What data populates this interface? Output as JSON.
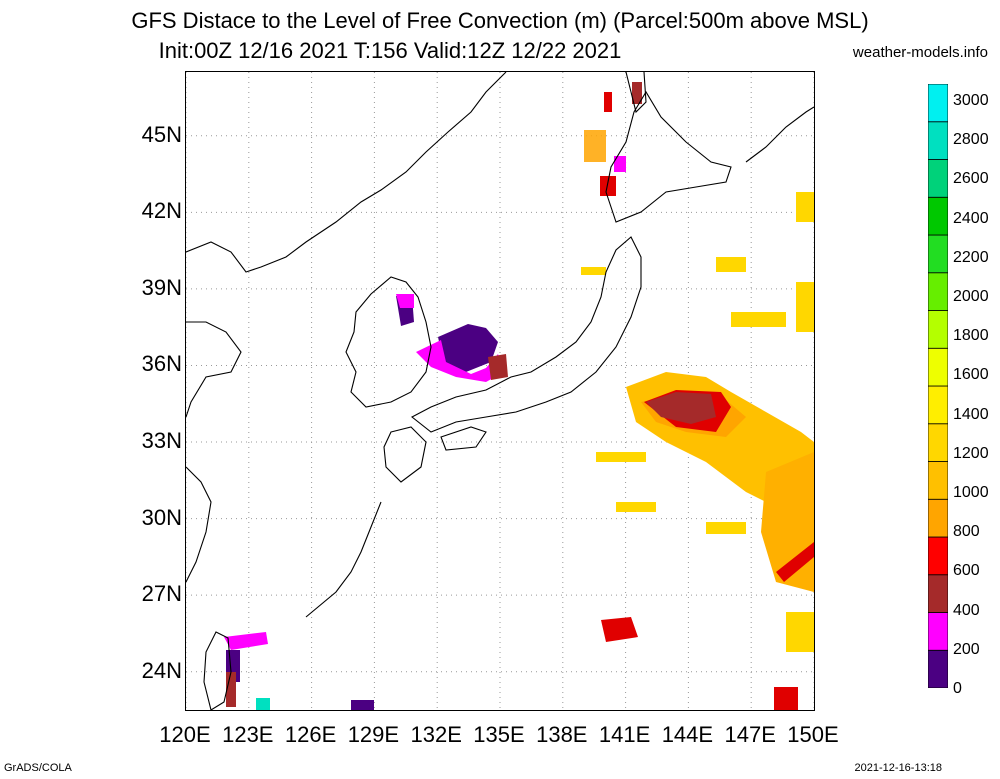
{
  "title_line1": "GFS Distace to the Level of Free Convection (m) (Parcel:500m above MSL)",
  "title_line2": "Init:00Z 12/16 2021 T:156 Valid:12Z 12/22 2021",
  "credit": "weather-models.info",
  "footer_left": "GrADS/COLA",
  "footer_right": "2021-12-16-13:18",
  "lat_labels": [
    "45N",
    "42N",
    "39N",
    "36N",
    "33N",
    "30N",
    "27N",
    "24N"
  ],
  "lon_labels": [
    "120E",
    "123E",
    "126E",
    "129E",
    "132E",
    "135E",
    "138E",
    "141E",
    "144E",
    "147E",
    "150E"
  ],
  "colorbar": {
    "labels": [
      "3000",
      "2800",
      "2600",
      "2400",
      "2200",
      "2000",
      "1800",
      "1600",
      "1400",
      "1200",
      "1000",
      "800",
      "600",
      "400",
      "200",
      "0"
    ],
    "colors": [
      "#4b0082",
      "#ff00ff",
      "#a52a2a",
      "#ff0000",
      "#ffa500",
      "#ffc000",
      "#ffd700",
      "#ffee00",
      "#eeff00",
      "#b4ff00",
      "#66ee00",
      "#22dd22",
      "#00c800",
      "#00d27a",
      "#00e0c0",
      "#00f0f0"
    ]
  },
  "map": {
    "lon_range": [
      120,
      150
    ],
    "lat_range": [
      22.5,
      47.5
    ]
  }
}
